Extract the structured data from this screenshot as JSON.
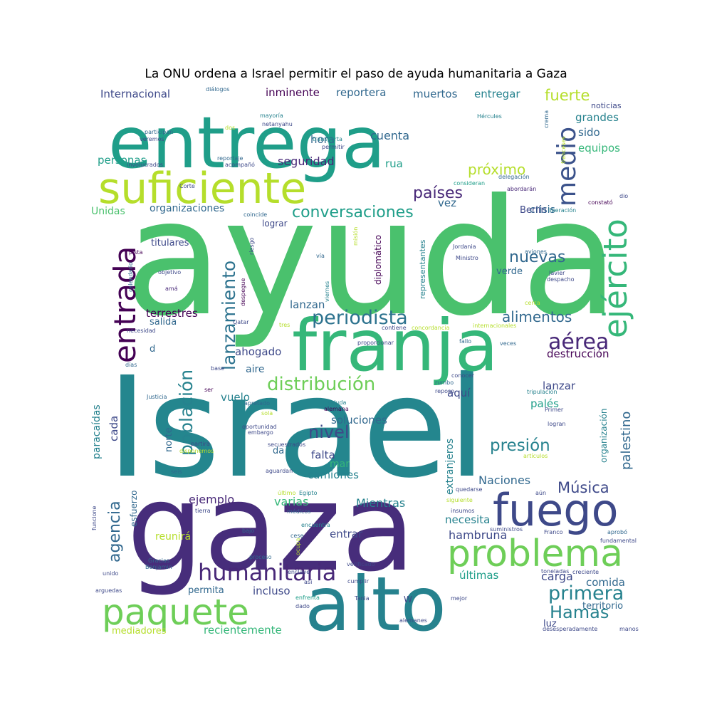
{
  "title": "La ONU ordena a Israel permitir el paso de ayuda humanitaria a Gaza",
  "palette": [
    "#440154",
    "#482878",
    "#3e4989",
    "#31688e",
    "#26828e",
    "#1f9e89",
    "#35b779",
    "#6ece58",
    "#b5de2b",
    "#fde725"
  ],
  "words": [
    {
      "text": "ayuda",
      "color": "#4ac16d"
    },
    {
      "text": "Israel",
      "color": "#24868e"
    },
    {
      "text": "gaza",
      "color": "#472d7b"
    },
    {
      "text": "entrega",
      "color": "#1f9e89"
    },
    {
      "text": "franja",
      "color": "#35b779"
    },
    {
      "text": "alto",
      "color": "#26828e"
    },
    {
      "text": "suficiente",
      "color": "#b5de2b"
    },
    {
      "text": "problema",
      "color": "#6ece58"
    },
    {
      "text": "fuego",
      "color": "#3e4989"
    },
    {
      "text": "paquete",
      "color": "#6ece58"
    },
    {
      "text": "entrada",
      "color": "#440154"
    },
    {
      "text": "ejército",
      "color": "#35b779"
    },
    {
      "text": "medio",
      "color": "#3b528b"
    },
    {
      "text": "humanitaria",
      "color": "#482878"
    },
    {
      "text": "periodista",
      "color": "#2c728e"
    },
    {
      "text": "lanzamiento",
      "color": "#2c728e"
    },
    {
      "text": "población",
      "color": "#26828e"
    },
    {
      "text": "distribución",
      "color": "#6ece58"
    },
    {
      "text": "conversaciones",
      "color": "#1f9e89"
    },
    {
      "text": "primera",
      "color": "#26828e"
    },
    {
      "text": "Hamas",
      "color": "#26828e"
    },
    {
      "text": "aérea",
      "color": "#482878"
    },
    {
      "text": "agencia",
      "color": "#31688e"
    },
    {
      "text": "alimentos",
      "color": "#31688e"
    },
    {
      "text": "Música",
      "color": "#3e4989"
    },
    {
      "text": "presión",
      "color": "#26828e"
    },
    {
      "text": "nivel",
      "color": "#3e4989"
    },
    {
      "text": "países",
      "color": "#482878"
    },
    {
      "text": "próximo",
      "color": "#b5de2b"
    },
    {
      "text": "fuerte",
      "color": "#b5de2b"
    },
    {
      "text": "nuevas",
      "color": "#31688e"
    },
    {
      "text": "palestino",
      "color": "#31688e"
    },
    {
      "text": "recientemente",
      "color": "#35b779"
    },
    {
      "text": "personas",
      "color": "#1f9e89"
    },
    {
      "text": "Internacional",
      "color": "#3e4989"
    },
    {
      "text": "inminente",
      "color": "#440154"
    },
    {
      "text": "reportera",
      "color": "#31688e"
    },
    {
      "text": "muertos",
      "color": "#31688e"
    },
    {
      "text": "entregar",
      "color": "#26828e"
    },
    {
      "text": "grandes",
      "color": "#26828e"
    },
    {
      "text": "sido",
      "color": "#31688e"
    },
    {
      "text": "equipos",
      "color": "#35b779"
    },
    {
      "text": "cuenta",
      "color": "#31688e"
    },
    {
      "text": "hora",
      "color": "#31688e"
    },
    {
      "text": "seguridad",
      "color": "#482878"
    },
    {
      "text": "rua",
      "color": "#1f9e89"
    },
    {
      "text": "vez",
      "color": "#31688e"
    },
    {
      "text": "Unidas",
      "color": "#4ac16d"
    },
    {
      "text": "organizaciones",
      "color": "#31688e"
    },
    {
      "text": "titulares",
      "color": "#3e4989"
    },
    {
      "text": "terrestres",
      "color": "#440154"
    },
    {
      "text": "salida",
      "color": "#31688e"
    },
    {
      "text": "lanzan",
      "color": "#31688e"
    },
    {
      "text": "ahogado",
      "color": "#3e4989"
    },
    {
      "text": "aire",
      "color": "#31688e"
    },
    {
      "text": "vuelo",
      "color": "#26828e"
    },
    {
      "text": "soluciones",
      "color": "#31688e"
    },
    {
      "text": "falta",
      "color": "#3e4989"
    },
    {
      "text": "mar",
      "color": "#35b779"
    },
    {
      "text": "camiones",
      "color": "#26828e"
    },
    {
      "text": "varias",
      "color": "#35b779"
    },
    {
      "text": "Mientras",
      "color": "#26828e"
    },
    {
      "text": "ejemplo",
      "color": "#482878"
    },
    {
      "text": "entrar",
      "color": "#3e4989"
    },
    {
      "text": "incluso",
      "color": "#3e4989"
    },
    {
      "text": "permita",
      "color": "#31688e"
    },
    {
      "text": "Naciones",
      "color": "#31688e"
    },
    {
      "text": "necesita",
      "color": "#26828e"
    },
    {
      "text": "hambruna",
      "color": "#3e4989"
    },
    {
      "text": "últimas",
      "color": "#1f9e89"
    },
    {
      "text": "carga",
      "color": "#3e4989"
    },
    {
      "text": "comida",
      "color": "#31688e"
    },
    {
      "text": "luz",
      "color": "#3e4989"
    },
    {
      "text": "territorio",
      "color": "#31688e"
    },
    {
      "text": "destrucción",
      "color": "#440154"
    },
    {
      "text": "lanzar",
      "color": "#3e4989"
    },
    {
      "text": "palés",
      "color": "#1f9e89"
    },
    {
      "text": "aquí",
      "color": "#3e4989"
    },
    {
      "text": "norte",
      "color": "#31688e"
    },
    {
      "text": "cada",
      "color": "#3e4989"
    },
    {
      "text": "paracaídas",
      "color": "#26828e"
    },
    {
      "text": "crisis",
      "color": "#31688e"
    },
    {
      "text": "Berlín",
      "color": "#3e4989"
    },
    {
      "text": "verde",
      "color": "#31688e"
    },
    {
      "text": "lograr",
      "color": "#3e4989"
    },
    {
      "text": "mediadores",
      "color": "#b5de2b"
    },
    {
      "text": "reunirá",
      "color": "#b5de2b"
    },
    {
      "text": "da",
      "color": "#31688e"
    },
    {
      "text": "d",
      "color": "#31688e"
    },
    {
      "text": "extranjeros",
      "color": "#26828e"
    },
    {
      "text": "organización",
      "color": "#26828e"
    },
    {
      "text": "esfuerzo",
      "color": "#31688e"
    },
    {
      "text": "diplomático",
      "color": "#440154"
    },
    {
      "text": "representantes",
      "color": "#26828e"
    },
    {
      "text": "noticias",
      "color": "#3e4989"
    },
    {
      "text": "diálogos",
      "color": "#31688e"
    },
    {
      "text": "mayoría",
      "color": "#26828e"
    },
    {
      "text": "netanyahu",
      "color": "#3e4989"
    },
    {
      "text": "participan",
      "color": "#31688e"
    },
    {
      "text": "veremos",
      "color": "#3e4989"
    },
    {
      "text": "dos",
      "color": "#b5de2b"
    },
    {
      "text": "transporta",
      "color": "#26828e"
    },
    {
      "text": "permitir",
      "color": "#3e4989"
    },
    {
      "text": "reportaje",
      "color": "#31688e"
    },
    {
      "text": "acompañó",
      "color": "#3e4989"
    },
    {
      "text": "involucrados",
      "color": "#3e4989"
    },
    {
      "text": "Hércules",
      "color": "#26828e"
    },
    {
      "text": "crema",
      "color": "#31688e"
    },
    {
      "text": "franceses",
      "color": "#b5de2b"
    },
    {
      "text": "delegación",
      "color": "#31688e"
    },
    {
      "text": "consideran",
      "color": "#1f9e89"
    },
    {
      "text": "abordarán",
      "color": "#482878"
    },
    {
      "text": "constató",
      "color": "#440154"
    },
    {
      "text": "dio",
      "color": "#3e4989"
    },
    {
      "text": "liberación",
      "color": "#26828e"
    },
    {
      "text": "Corte",
      "color": "#3e4989"
    },
    {
      "text": "coincide",
      "color": "#31688e"
    },
    {
      "text": "riesgo",
      "color": "#3e4989"
    },
    {
      "text": "misión",
      "color": "#b5de2b"
    },
    {
      "text": "pista",
      "color": "#440154"
    },
    {
      "text": "vía",
      "color": "#31688e"
    },
    {
      "text": "Jordania",
      "color": "#3e4989"
    },
    {
      "text": "Ministro",
      "color": "#3e4989"
    },
    {
      "text": "aviones",
      "color": "#31688e"
    },
    {
      "text": "Javier",
      "color": "#3e4989"
    },
    {
      "text": "despacho",
      "color": "#3e4989"
    },
    {
      "text": "objetivo",
      "color": "#3e4989"
    },
    {
      "text": "calendario",
      "color": "#31688e"
    },
    {
      "text": "amá",
      "color": "#482878"
    },
    {
      "text": "despegue",
      "color": "#440154"
    },
    {
      "text": "viernes",
      "color": "#26828e"
    },
    {
      "text": "cerca",
      "color": "#b5de2b"
    },
    {
      "text": "Qatar",
      "color": "#3e4989"
    },
    {
      "text": "tres",
      "color": "#b5de2b"
    },
    {
      "text": "contiene",
      "color": "#3e4989"
    },
    {
      "text": "concordancia",
      "color": "#b5de2b"
    },
    {
      "text": "internacionales",
      "color": "#b5de2b"
    },
    {
      "text": "necesidad",
      "color": "#3e4989"
    },
    {
      "text": "proporcionar",
      "color": "#3e4989"
    },
    {
      "text": "fallo",
      "color": "#31688e"
    },
    {
      "text": "veces",
      "color": "#31688e"
    },
    {
      "text": "días",
      "color": "#31688e"
    },
    {
      "text": "base",
      "color": "#3e4989"
    },
    {
      "text": "conocer",
      "color": "#3e4989"
    },
    {
      "text": "Justicia",
      "color": "#31688e"
    },
    {
      "text": "ser",
      "color": "#440154"
    },
    {
      "text": "apretado",
      "color": "#31688e"
    },
    {
      "text": "saluda",
      "color": "#26828e"
    },
    {
      "text": "rumbo",
      "color": "#31688e"
    },
    {
      "text": "reposo",
      "color": "#3e4989"
    },
    {
      "text": "tripulación",
      "color": "#26828e"
    },
    {
      "text": "Primer",
      "color": "#3e4989"
    },
    {
      "text": "sola",
      "color": "#b5de2b"
    },
    {
      "text": "alemana",
      "color": "#440154"
    },
    {
      "text": "oportunidad",
      "color": "#3e4989"
    },
    {
      "text": "embargo",
      "color": "#3e4989"
    },
    {
      "text": "logran",
      "color": "#3e4989"
    },
    {
      "text": "secuestrados",
      "color": "#3e4989"
    },
    {
      "text": "partirá",
      "color": "#3e4989"
    },
    {
      "text": "disponemos",
      "color": "#b5de2b"
    },
    {
      "text": "artículos",
      "color": "#b5de2b"
    },
    {
      "text": "seis",
      "color": "#31688e"
    },
    {
      "text": "aguardan",
      "color": "#3e4989"
    },
    {
      "text": "último",
      "color": "#b5de2b"
    },
    {
      "text": "Egipto",
      "color": "#26828e"
    },
    {
      "text": "quedarse",
      "color": "#3e4989"
    },
    {
      "text": "aún",
      "color": "#3e4989"
    },
    {
      "text": "funcione",
      "color": "#3e4989"
    },
    {
      "text": "tierra",
      "color": "#3e4989"
    },
    {
      "text": "médicos",
      "color": "#31688e"
    },
    {
      "text": "siguiente",
      "color": "#b5de2b"
    },
    {
      "text": "insumos",
      "color": "#3e4989"
    },
    {
      "text": "encuentra",
      "color": "#26828e"
    },
    {
      "text": "bajo",
      "color": "#31688e"
    },
    {
      "text": "cese",
      "color": "#31688e"
    },
    {
      "text": "ocupa",
      "color": "#b5de2b"
    },
    {
      "text": "suministros",
      "color": "#3e4989"
    },
    {
      "text": "Franco",
      "color": "#3e4989"
    },
    {
      "text": "aprobó",
      "color": "#31688e"
    },
    {
      "text": "fundamental",
      "color": "#3e4989"
    },
    {
      "text": "Gracias",
      "color": "#31688e"
    },
    {
      "text": "Benjamin",
      "color": "#31688e"
    },
    {
      "text": "proceso",
      "color": "#31688e"
    },
    {
      "text": "verificado",
      "color": "#3e4989"
    },
    {
      "text": "unido",
      "color": "#3e4989"
    },
    {
      "text": "toneladas",
      "color": "#3e4989"
    },
    {
      "text": "creciente",
      "color": "#3e4989"
    },
    {
      "text": "cumplir",
      "color": "#3e4989"
    },
    {
      "text": "arguedas",
      "color": "#3e4989"
    },
    {
      "text": "Tania",
      "color": "#3e4989"
    },
    {
      "text": "enfrenta",
      "color": "#1f9e89"
    },
    {
      "text": "dado",
      "color": "#3e4989"
    },
    {
      "text": "W",
      "color": "#3e4989"
    },
    {
      "text": "mejor",
      "color": "#3e4989"
    },
    {
      "text": "alemanes",
      "color": "#3e4989"
    },
    {
      "text": "desesperadamente",
      "color": "#3e4989"
    },
    {
      "text": "manos",
      "color": "#3e4989"
    },
    {
      "text": "así",
      "color": "#3e4989"
    },
    {
      "text": "enclave",
      "color": "#3e4989"
    }
  ]
}
